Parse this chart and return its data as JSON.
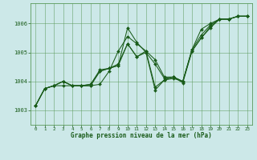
{
  "background_color": "#cce8e8",
  "grid_color": "#5a9a5a",
  "line_color": "#1a5c1a",
  "title": "Graphe pression niveau de la mer (hPa)",
  "xlim": [
    -0.5,
    23.5
  ],
  "ylim": [
    1002.5,
    1006.7
  ],
  "xticks": [
    0,
    1,
    2,
    3,
    4,
    5,
    6,
    7,
    8,
    9,
    10,
    11,
    12,
    13,
    14,
    15,
    16,
    17,
    18,
    19,
    20,
    21,
    22,
    23
  ],
  "yticks": [
    1003,
    1004,
    1005,
    1006
  ],
  "series": [
    [
      1003.15,
      1003.75,
      1003.85,
      1004.0,
      1003.85,
      1003.85,
      1003.85,
      1003.9,
      1004.35,
      1005.05,
      1005.55,
      1005.3,
      1005.05,
      1004.75,
      1004.15,
      1004.15,
      1004.0,
      1005.1,
      1005.8,
      1006.0,
      1006.15,
      1006.15,
      1006.25,
      1006.25
    ],
    [
      1003.15,
      1003.75,
      1003.85,
      1004.0,
      1003.85,
      1003.85,
      1003.85,
      1004.35,
      1004.45,
      1004.55,
      1005.85,
      1005.35,
      1005.0,
      1004.6,
      1004.1,
      1004.15,
      1004.0,
      1005.1,
      1005.6,
      1005.95,
      1006.15,
      1006.15,
      1006.25,
      1006.25
    ],
    [
      1003.15,
      1003.75,
      1003.85,
      1004.0,
      1003.85,
      1003.85,
      1003.9,
      1004.35,
      1004.45,
      1004.55,
      1005.3,
      1004.85,
      1005.05,
      1003.8,
      1004.05,
      1004.15,
      1003.95,
      1005.05,
      1005.5,
      1005.9,
      1006.15,
      1006.15,
      1006.25,
      1006.25
    ],
    [
      1003.15,
      1003.75,
      1003.85,
      1003.85,
      1003.85,
      1003.85,
      1003.9,
      1004.4,
      1004.45,
      1004.6,
      1005.3,
      1004.85,
      1005.0,
      1003.7,
      1004.05,
      1004.1,
      1004.0,
      1005.05,
      1005.5,
      1005.85,
      1006.15,
      1006.15,
      1006.25,
      1006.25
    ]
  ]
}
